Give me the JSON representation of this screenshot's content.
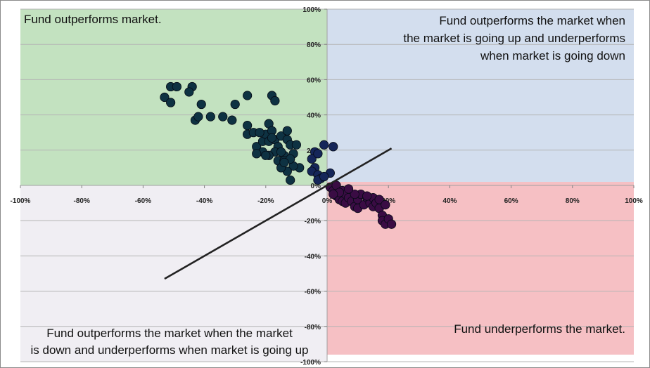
{
  "chart_data": {
    "type": "scatter",
    "xlim": [
      -100,
      100
    ],
    "ylim": [
      -100,
      100
    ],
    "x_ticks": [
      "-100%",
      "-80%",
      "-60%",
      "-40%",
      "-20%",
      "0%",
      "20%",
      "40%",
      "60%",
      "80%",
      "100%"
    ],
    "y_ticks": [
      "100%",
      "80%",
      "60%",
      "40%",
      "20%",
      "0%",
      "-20%",
      "-40%",
      "-60%",
      "-80%",
      "-100%"
    ],
    "grid": "horizontal",
    "quadrants": [
      {
        "name": "top-left",
        "color": "#c3e2c0",
        "lines": [
          "Fund outperforms market."
        ],
        "align": "start",
        "x_range": [
          -100,
          0
        ],
        "y_range": [
          0,
          100
        ]
      },
      {
        "name": "top-right",
        "color": "#d3deee",
        "lines": [
          "Fund outperforms the market when",
          "the market is going up and underperforms",
          "when market is going down"
        ],
        "align": "end",
        "x_range": [
          0,
          100
        ],
        "y_range": [
          2,
          100
        ]
      },
      {
        "name": "bottom-left",
        "color": "#f0eef3",
        "lines": [
          "Fund outperforms  the market when the market",
          "is down and underperforms  when market is going up"
        ],
        "align": "middle",
        "x_range": [
          -100,
          0
        ],
        "y_range": [
          -100,
          0
        ]
      },
      {
        "name": "bottom-right",
        "color": "#f6c0c4",
        "lines": [
          "Fund underperforms  the market."
        ],
        "align": "end",
        "x_range": [
          0,
          100
        ],
        "y_range": [
          -96,
          2
        ]
      }
    ],
    "trend_line": {
      "x": [
        -53,
        21
      ],
      "y": [
        -53,
        21
      ],
      "color": "#222222"
    },
    "series": [
      {
        "color": "#0e3242",
        "points": [
          [
            -53,
            50
          ],
          [
            -51,
            56
          ],
          [
            -51,
            47
          ],
          [
            -49,
            56
          ],
          [
            -44,
            56
          ],
          [
            -45,
            53
          ],
          [
            -41,
            46
          ],
          [
            -43,
            37
          ],
          [
            -42,
            39
          ],
          [
            -38,
            39
          ],
          [
            -34,
            39
          ],
          [
            -31,
            37
          ],
          [
            -30,
            46
          ],
          [
            -26,
            51
          ],
          [
            -26,
            34
          ],
          [
            -26,
            29
          ],
          [
            -24,
            30
          ],
          [
            -23,
            22
          ],
          [
            -21,
            25
          ],
          [
            -21,
            19
          ],
          [
            -20,
            29
          ],
          [
            -19,
            35
          ],
          [
            -18,
            51
          ],
          [
            -17,
            48
          ],
          [
            -19,
            25
          ],
          [
            -18,
            31
          ],
          [
            -17,
            26
          ],
          [
            -16,
            22
          ],
          [
            -15,
            28
          ],
          [
            -13,
            31
          ],
          [
            -13,
            26
          ],
          [
            -12,
            23
          ],
          [
            -11,
            18
          ],
          [
            -10,
            23
          ],
          [
            -9,
            10
          ],
          [
            -11,
            11
          ],
          [
            -13,
            8
          ],
          [
            -12,
            3
          ],
          [
            -14,
            17
          ],
          [
            -16,
            14
          ],
          [
            -15,
            10
          ],
          [
            -17,
            19
          ],
          [
            -19,
            17
          ],
          [
            -18,
            27
          ],
          [
            -22,
            30
          ],
          [
            -23,
            18
          ],
          [
            -20,
            17
          ],
          [
            -15,
            19
          ],
          [
            -14,
            14
          ],
          [
            -12,
            15
          ],
          [
            -14,
            13
          ]
        ]
      },
      {
        "color": "#152659",
        "points": [
          [
            -4,
            19
          ],
          [
            -5,
            15
          ],
          [
            -3,
            18
          ],
          [
            -1,
            23
          ],
          [
            2,
            22
          ],
          [
            -4,
            10
          ],
          [
            -5,
            8
          ],
          [
            -3,
            6
          ],
          [
            -2,
            4
          ],
          [
            1,
            7
          ],
          [
            -3,
            3
          ],
          [
            -1,
            5
          ]
        ]
      },
      {
        "color": "#3a0c44",
        "points": [
          [
            1,
            -1
          ],
          [
            2,
            -3
          ],
          [
            3,
            0
          ],
          [
            3,
            -6
          ],
          [
            4,
            -8
          ],
          [
            5,
            -3
          ],
          [
            5,
            -9
          ],
          [
            6,
            -5
          ],
          [
            6,
            -10
          ],
          [
            7,
            -7
          ],
          [
            8,
            -9
          ],
          [
            9,
            -12
          ],
          [
            10,
            -8
          ],
          [
            10,
            -13
          ],
          [
            11,
            -5
          ],
          [
            12,
            -11
          ],
          [
            13,
            -7
          ],
          [
            14,
            -10
          ],
          [
            15,
            -12
          ],
          [
            15,
            -7
          ],
          [
            16,
            -10
          ],
          [
            17,
            -13
          ],
          [
            17,
            -8
          ],
          [
            18,
            -17
          ],
          [
            18,
            -20
          ],
          [
            19,
            -22
          ],
          [
            19,
            -11
          ],
          [
            20,
            -19
          ],
          [
            21,
            -22
          ],
          [
            13,
            -6
          ],
          [
            9,
            -5
          ],
          [
            7,
            -2
          ],
          [
            4,
            -4
          ],
          [
            2,
            -5
          ]
        ]
      }
    ]
  }
}
